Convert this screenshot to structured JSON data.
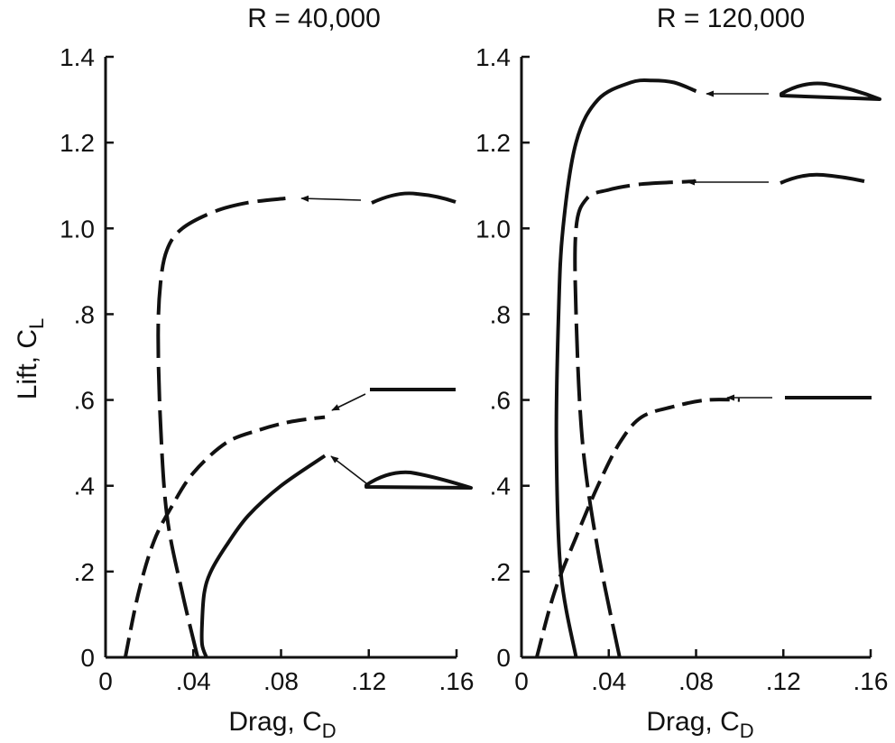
{
  "chart_data": [
    {
      "type": "line",
      "title": "R = 40,000",
      "xlabel": "Drag, C",
      "xlabel_sub": "D",
      "ylabel": "Lift, C",
      "ylabel_sub": "L",
      "xlim": [
        0,
        0.16
      ],
      "ylim": [
        0,
        1.4
      ],
      "x_tick_labels": [
        "0",
        ".04",
        ".08",
        ".12",
        ".16"
      ],
      "y_tick_labels": [
        "0",
        ".2",
        ".4",
        ".6",
        ".8",
        "1.0",
        "1.2",
        "1.4"
      ],
      "grid": false,
      "series": [
        {
          "style": "long-dash",
          "airfoil": "cambered plate",
          "points": [
            [
              0.042,
              0.0
            ],
            [
              0.035,
              0.15
            ],
            [
              0.028,
              0.33
            ],
            [
              0.025,
              0.55
            ],
            [
              0.024,
              0.75
            ],
            [
              0.025,
              0.87
            ],
            [
              0.028,
              0.95
            ],
            [
              0.035,
              1.0
            ],
            [
              0.05,
              1.04
            ],
            [
              0.065,
              1.06
            ],
            [
              0.082,
              1.07
            ]
          ]
        },
        {
          "style": "short-dash",
          "airfoil": "flat plate",
          "points": [
            [
              0.009,
              0.0
            ],
            [
              0.015,
              0.15
            ],
            [
              0.022,
              0.27
            ],
            [
              0.03,
              0.35
            ],
            [
              0.04,
              0.43
            ],
            [
              0.055,
              0.5
            ],
            [
              0.07,
              0.53
            ],
            [
              0.085,
              0.55
            ],
            [
              0.1,
              0.56
            ]
          ]
        },
        {
          "style": "solid",
          "airfoil": "thick airfoil",
          "points": [
            [
              0.046,
              0.0
            ],
            [
              0.044,
              0.03
            ],
            [
              0.044,
              0.08
            ],
            [
              0.045,
              0.15
            ],
            [
              0.048,
              0.2
            ],
            [
              0.055,
              0.26
            ],
            [
              0.065,
              0.33
            ],
            [
              0.08,
              0.4
            ],
            [
              0.1,
              0.47
            ]
          ]
        }
      ]
    },
    {
      "type": "line",
      "title": "R = 120,000",
      "xlabel": "Drag, C",
      "xlabel_sub": "D",
      "xlim": [
        0,
        0.16
      ],
      "ylim": [
        0,
        1.4
      ],
      "x_tick_labels": [
        "0",
        ".04",
        ".08",
        ".12",
        ".16"
      ],
      "y_tick_labels": [
        "0",
        ".2",
        ".4",
        ".6",
        ".8",
        "1.0",
        "1.2",
        "1.4"
      ],
      "grid": false,
      "series": [
        {
          "style": "solid",
          "airfoil": "thick airfoil",
          "points": [
            [
              0.025,
              0.0
            ],
            [
              0.018,
              0.2
            ],
            [
              0.016,
              0.5
            ],
            [
              0.017,
              0.8
            ],
            [
              0.019,
              1.0
            ],
            [
              0.025,
              1.2
            ],
            [
              0.035,
              1.3
            ],
            [
              0.05,
              1.34
            ],
            [
              0.06,
              1.345
            ],
            [
              0.07,
              1.34
            ],
            [
              0.08,
              1.32
            ]
          ]
        },
        {
          "style": "long-dash",
          "airfoil": "cambered plate",
          "points": [
            [
              0.045,
              0.0
            ],
            [
              0.035,
              0.25
            ],
            [
              0.028,
              0.5
            ],
            [
              0.025,
              0.8
            ],
            [
              0.025,
              1.0
            ],
            [
              0.03,
              1.07
            ],
            [
              0.04,
              1.09
            ],
            [
              0.05,
              1.1
            ],
            [
              0.06,
              1.105
            ],
            [
              0.08,
              1.11
            ]
          ]
        },
        {
          "style": "short-dash",
          "airfoil": "flat plate",
          "points": [
            [
              0.007,
              0.0
            ],
            [
              0.015,
              0.15
            ],
            [
              0.025,
              0.28
            ],
            [
              0.035,
              0.4
            ],
            [
              0.045,
              0.5
            ],
            [
              0.055,
              0.56
            ],
            [
              0.07,
              0.585
            ],
            [
              0.085,
              0.6
            ],
            [
              0.1,
              0.6
            ]
          ]
        }
      ]
    }
  ]
}
